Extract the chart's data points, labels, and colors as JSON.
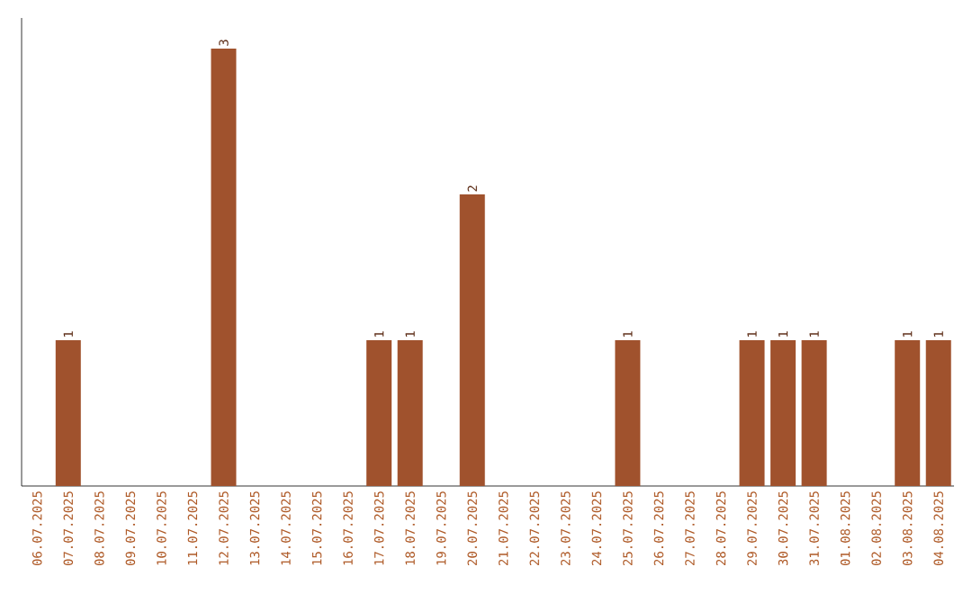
{
  "chart_data": {
    "type": "bar",
    "categories": [
      "06.07.2025",
      "07.07.2025",
      "08.07.2025",
      "09.07.2025",
      "10.07.2025",
      "11.07.2025",
      "12.07.2025",
      "13.07.2025",
      "14.07.2025",
      "15.07.2025",
      "16.07.2025",
      "17.07.2025",
      "18.07.2025",
      "19.07.2025",
      "20.07.2025",
      "21.07.2025",
      "22.07.2025",
      "23.07.2025",
      "24.07.2025",
      "25.07.2025",
      "26.07.2025",
      "27.07.2025",
      "28.07.2025",
      "29.07.2025",
      "30.07.2025",
      "31.07.2025",
      "01.08.2025",
      "02.08.2025",
      "03.08.2025",
      "04.08.2025"
    ],
    "values": [
      0,
      1,
      0,
      0,
      0,
      0,
      3,
      0,
      0,
      0,
      0,
      1,
      1,
      0,
      2,
      0,
      0,
      0,
      0,
      1,
      0,
      0,
      0,
      1,
      1,
      1,
      0,
      0,
      1,
      1
    ],
    "value_labels": [
      null,
      "1",
      null,
      null,
      null,
      null,
      "3",
      null,
      null,
      null,
      null,
      "1",
      "1",
      null,
      "2",
      null,
      null,
      null,
      null,
      "1",
      null,
      null,
      null,
      "1",
      "1",
      "1",
      null,
      null,
      "1",
      "1"
    ],
    "color": "#a0522d"
  }
}
